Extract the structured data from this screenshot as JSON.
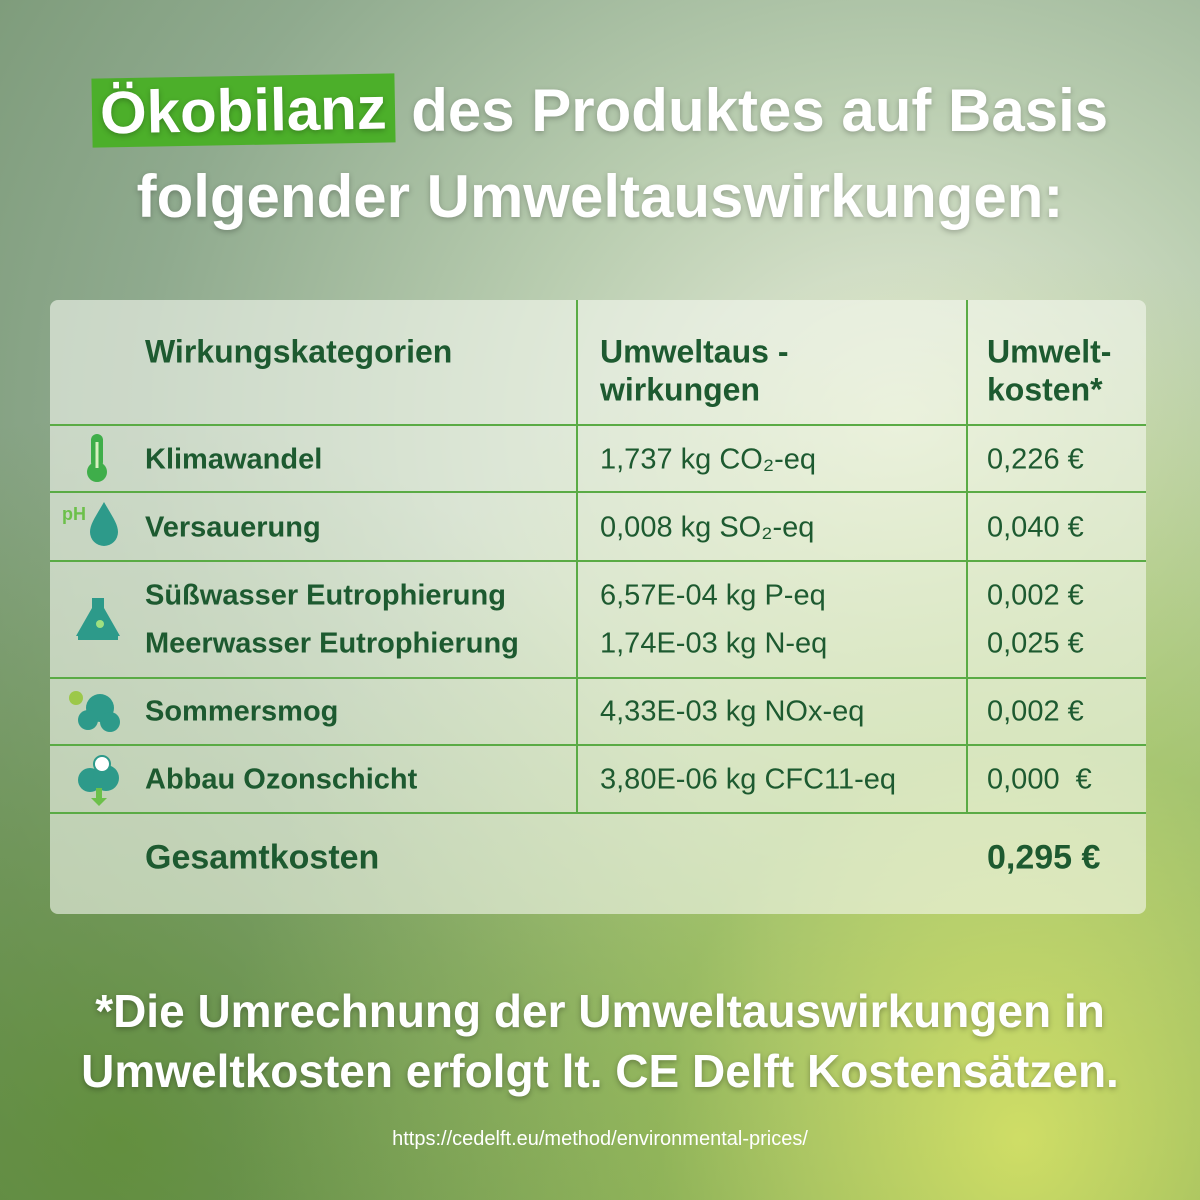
{
  "title": {
    "highlight": "Ökobilanz",
    "line1_rest": "des Produktes auf Basis",
    "line2": "folgender Umweltauswirkungen:"
  },
  "table": {
    "header": [
      [
        "Wirkungskategorien"
      ],
      [
        "Umweltaus -",
        "wirkungen"
      ],
      [
        "Umwelt-",
        "kosten*"
      ]
    ],
    "rows": [
      [
        "Klimawandel",
        "1,737 kg CO₂-eq",
        "0,226 €"
      ],
      [
        "Versauerung",
        "0,008 kg SO₂-eq",
        "0,040 €"
      ],
      [
        "Süßwasser Eutrophierung",
        "6,57E-04 kg P-eq",
        "0,002 €"
      ],
      [
        "Meerwasser Eutrophierung",
        "1,74E-03 kg N-eq",
        "0,025 €"
      ],
      [
        "Sommersmog",
        "4,33E-03 kg NOx-eq",
        "0,002 €"
      ],
      [
        "Abbau Ozonschicht",
        "3,80E-06 kg CFC11-eq",
        "0,000  €"
      ]
    ],
    "total": {
      "label": "Gesamtkosten",
      "value": "0,295 €"
    }
  },
  "footnote": [
    "*Die Umrechnung der Umweltauswirkungen in",
    "Umweltkosten erfolgt lt. CE Delft Kostensätzen."
  ],
  "source": "https://cedelft.eu/method/environmental-prices/"
}
